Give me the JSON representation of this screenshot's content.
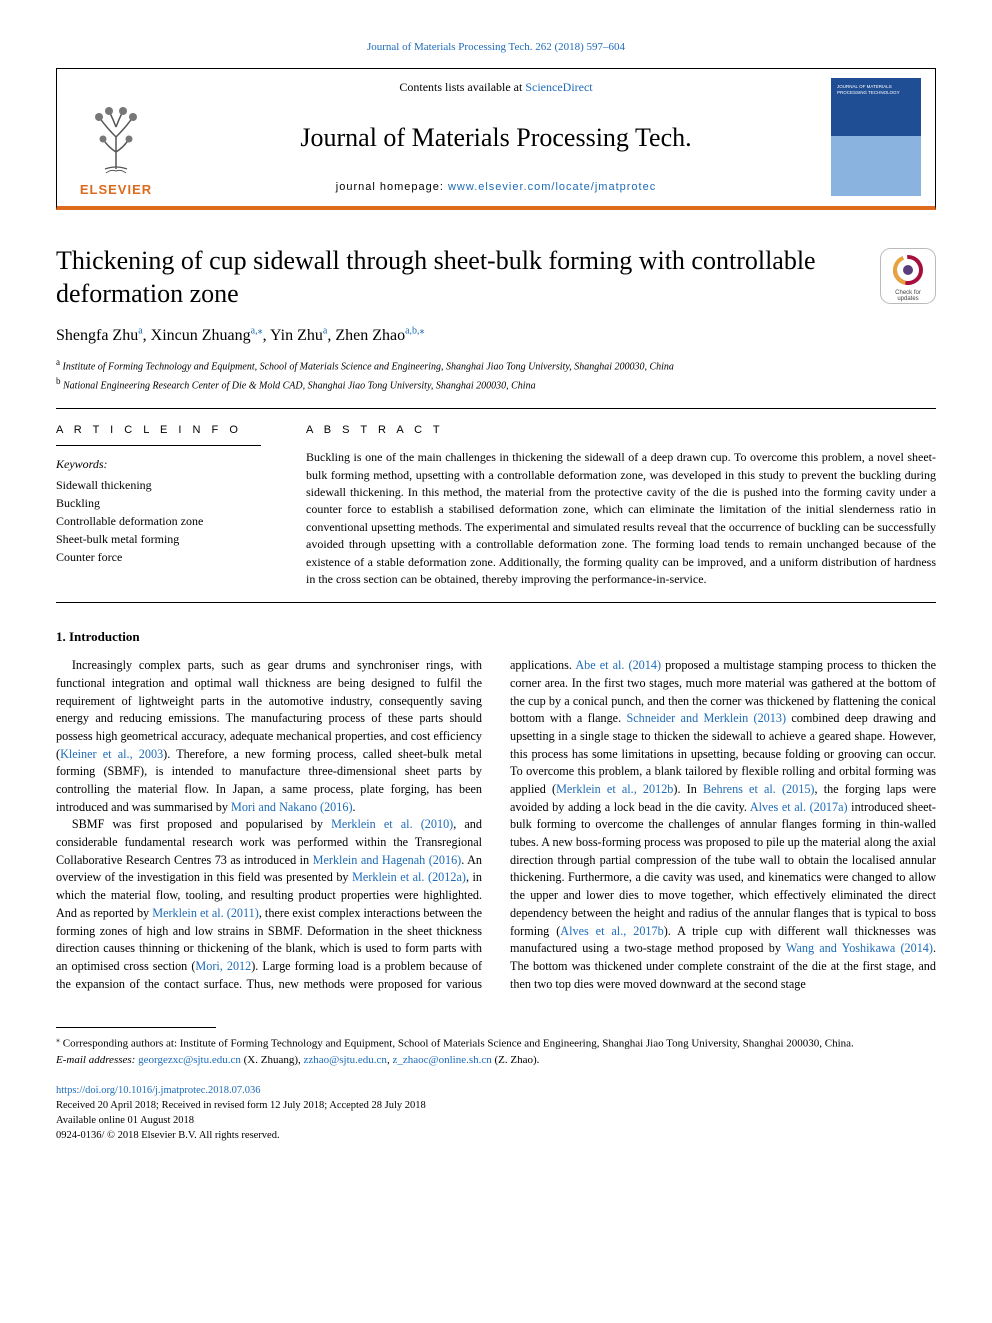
{
  "top_link_prefix": "Journal of Materials Processing Tech. 262 (2018) 597–604",
  "masthead": {
    "contents_prefix": "Contents lists available at ",
    "contents_link": "ScienceDirect",
    "journal_name": "Journal of Materials Processing Tech.",
    "homepage_prefix": "journal homepage: ",
    "homepage_url": "www.elsevier.com/locate/jmatprotec",
    "elsevier": "ELSEVIER",
    "cover_caption": "JOURNAL OF MATERIALS PROCESSING TECHNOLOGY"
  },
  "check_updates_label": "Check for updates",
  "title": "Thickening of cup sidewall through sheet-bulk forming with controllable deformation zone",
  "authors": [
    {
      "name": "Shengfa Zhu",
      "aff": "a"
    },
    {
      "name": "Xincun Zhuang",
      "aff": "a,",
      "corr": true
    },
    {
      "name": "Yin Zhu",
      "aff": "a"
    },
    {
      "name": "Zhen Zhao",
      "aff": "a,b,",
      "corr": true
    }
  ],
  "affiliations": [
    {
      "tag": "a",
      "text": "Institute of Forming Technology and Equipment, School of Materials Science and Engineering, Shanghai Jiao Tong University, Shanghai 200030, China"
    },
    {
      "tag": "b",
      "text": "National Engineering Research Center of Die & Mold CAD, Shanghai Jiao Tong University, Shanghai 200030, China"
    }
  ],
  "article_info_label": "A R T I C L E  I N F O",
  "abstract_label": "A B S T R A C T",
  "keywords_heading": "Keywords:",
  "keywords": [
    "Sidewall thickening",
    "Buckling",
    "Controllable deformation zone",
    "Sheet-bulk metal forming",
    "Counter force"
  ],
  "abstract_text": "Buckling is one of the main challenges in thickening the sidewall of a deep drawn cup. To overcome this problem, a novel sheet-bulk forming method, upsetting with a controllable deformation zone, was developed in this study to prevent the buckling during sidewall thickening. In this method, the material from the protective cavity of the die is pushed into the forming cavity under a counter force to establish a stabilised deformation zone, which can eliminate the limitation of the initial slenderness ratio in conventional upsetting methods. The experimental and simulated results reveal that the occurrence of buckling can be successfully avoided through upsetting with a controllable deformation zone. The forming load tends to remain unchanged because of the existence of a stable deformation zone. Additionally, the forming quality can be improved, and a uniform distribution of hardness in the cross section can be obtained, thereby improving the performance-in-service.",
  "intro_heading": "1. Introduction",
  "body": "<p>Increasingly complex parts, such as gear drums and synchroniser rings, with functional integration and optimal wall thickness are being designed to fulfil the requirement of lightweight parts in the automotive industry, consequently saving energy and reducing emissions. The manufacturing process of these parts should possess high geometrical accuracy, adequate mechanical properties, and cost efficiency (<span class=\"cite\">Kleiner et al., 2003</span>). Therefore, a new forming process, called sheet-bulk metal forming (SBMF), is intended to manufacture three-dimensional sheet parts by controlling the material flow. In Japan, a same process, plate forging, has been introduced and was summarised by <span class=\"cite\">Mori and Nakano (2016)</span>.</p><p>SBMF was first proposed and popularised by <span class=\"cite\">Merklein et al. (2010)</span>, and considerable fundamental research work was performed within the Transregional Collaborative Research Centres 73 as introduced in <span class=\"cite\">Merklein and Hagenah (2016)</span>. An overview of the investigation in this field was presented by <span class=\"cite\">Merklein et al. (2012a)</span>, in which the material flow, tooling, and resulting product properties were highlighted. And as reported by <span class=\"cite\">Merklein et al. (2011)</span>, there exist complex interactions between the forming zones of high and low strains in SBMF. Deformation in the sheet thickness direction causes thinning or thickening of the blank, which is used to form parts with an optimised cross section (<span class=\"cite\">Mori, 2012</span>). Large forming load is a problem because of the expansion of the contact surface. Thus, new methods were proposed for various applications. <span class=\"cite\">Abe et al. (2014)</span> proposed a multistage stamping process to thicken the corner area. In the first two stages, much more material was gathered at the bottom of the cup by a conical punch, and then the corner was thickened by flattening the conical bottom with a flange. <span class=\"cite\">Schneider and Merklein (2013)</span> combined deep drawing and upsetting in a single stage to thicken the sidewall to achieve a geared shape. However, this process has some limitations in upsetting, because folding or grooving can occur. To overcome this problem, a blank tailored by flexible rolling and orbital forming was applied (<span class=\"cite\">Merklein et al., 2012b</span>). In <span class=\"cite\">Behrens et al. (2015)</span>, the forging laps were avoided by adding a lock bead in the die cavity. <span class=\"cite\">Alves et al. (2017a)</span> introduced sheet-bulk forming to overcome the challenges of annular flanges forming in thin-walled tubes. A new boss-forming process was proposed to pile up the material along the axial direction through partial compression of the tube wall to obtain the localised annular thickening. Furthermore, a die cavity was used, and kinematics were changed to allow the upper and lower dies to move together, which effectively eliminated the direct dependency between the height and radius of the annular flanges that is typical to boss forming (<span class=\"cite\">Alves et al., 2017b</span>). A triple cup with different wall thicknesses was manufactured using a two-stage method proposed by <span class=\"cite\">Wang and Yoshikawa (2014)</span>. The bottom was thickened under complete constraint of the die at the first stage, and then two top dies were moved downward at the second stage</p>",
  "footnote_corresponding": "Corresponding authors at: Institute of Forming Technology and Equipment, School of Materials Science and Engineering, Shanghai Jiao Tong University, Shanghai 200030, China.",
  "footnote_email_label": "E-mail addresses:",
  "footnote_emails_html": "<a href=\"#\">georgezxc@sjtu.edu.cn</a> (X. Zhuang), <a href=\"#\">zzhao@sjtu.edu.cn</a>, <a href=\"#\">z_zhaoc@online.sh.cn</a> (Z. Zhao).",
  "footer": {
    "doi": "https://doi.org/10.1016/j.jmatprotec.2018.07.036",
    "history": "Received 20 April 2018; Received in revised form 12 July 2018; Accepted 28 July 2018",
    "online": "Available online 01 August 2018",
    "copyright": "0924-0136/ © 2018 Elsevier B.V. All rights reserved."
  },
  "colors": {
    "link": "#1e6bb8",
    "accent": "#dc6b1e",
    "cover_primary": "#1f4e94",
    "cover_band": "#8bb3df"
  },
  "typography": {
    "body_pt": 12,
    "title_pt": 26,
    "journal_name_pt": 26,
    "authors_pt": 16,
    "abstract_pt": 12,
    "footnote_pt": 11
  }
}
